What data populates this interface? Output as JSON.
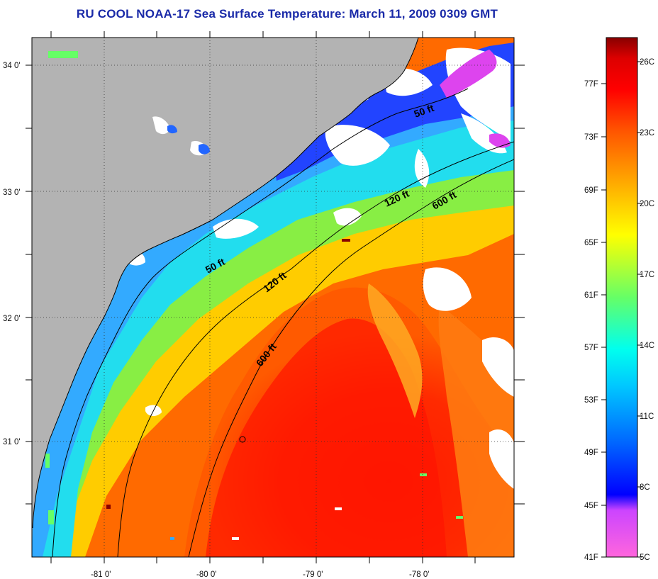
{
  "title": "RU COOL  NOAA-17  Sea Surface Temperature:  March 11, 2009 0309 GMT",
  "latitude_labels": [
    "34 0'",
    "33 0'",
    "32 0'",
    "31 0'"
  ],
  "longitude_labels": [
    "-81 0'",
    "-80 0'",
    "-79 0'",
    "-78 0'"
  ],
  "contour_labels": {
    "c50_north": "50 ft",
    "c50_south": "50 ft",
    "c120_north": "120 ft",
    "c120_south": "120 ft",
    "c600_north": "600 ft",
    "c600_south": "600 ft"
  },
  "colorbar": {
    "fahrenheit": [
      "77F",
      "73F",
      "69F",
      "65F",
      "61F",
      "57F",
      "53F",
      "49F",
      "45F",
      "41F"
    ],
    "celsius": [
      "26C",
      "23C",
      "20C",
      "17C",
      "14C",
      "11C",
      "8C",
      "5C"
    ],
    "colors": [
      "#ff66dd",
      "#cc44ff",
      "#0000ff",
      "#0066ff",
      "#00c8ff",
      "#00ffee",
      "#66ff66",
      "#ffff00",
      "#ffaa00",
      "#ff5500",
      "#ff0000",
      "#dd0000",
      "#880000"
    ]
  },
  "legend_colors": {
    "land": "#b3b3b3",
    "cloud": "#ffffff",
    "coastline": "#000000"
  }
}
